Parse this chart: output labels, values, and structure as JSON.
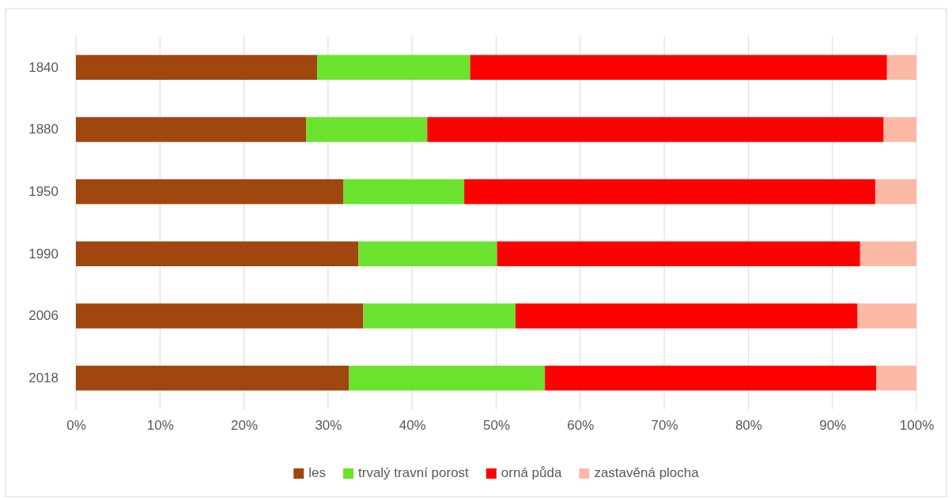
{
  "chart_data": {
    "type": "bar",
    "orientation": "horizontal",
    "stacked": true,
    "categories": [
      "1840",
      "1880",
      "1950",
      "1990",
      "2006",
      "2018"
    ],
    "series": [
      {
        "name": "les",
        "color": "#a0460f",
        "values": [
          28.7,
          27.4,
          31.8,
          33.6,
          34.2,
          32.5
        ]
      },
      {
        "name": "trvalý travní porost",
        "color": "#6be22d",
        "values": [
          18.2,
          14.4,
          14.4,
          16.5,
          18.1,
          23.3
        ]
      },
      {
        "name": "orná půda",
        "color": "#ff0000",
        "values": [
          49.6,
          54.3,
          48.9,
          43.2,
          40.7,
          39.4
        ]
      },
      {
        "name": "zastavěná plocha",
        "color": "#fbb9a6",
        "values": [
          3.5,
          3.9,
          4.9,
          6.7,
          7.0,
          4.8
        ]
      }
    ],
    "xlim": [
      0,
      100
    ],
    "xticks": [
      {
        "value": 0,
        "label": "0%"
      },
      {
        "value": 10,
        "label": "10%"
      },
      {
        "value": 20,
        "label": "20%"
      },
      {
        "value": 30,
        "label": "30%"
      },
      {
        "value": 40,
        "label": "40%"
      },
      {
        "value": 50,
        "label": "50%"
      },
      {
        "value": 60,
        "label": "60%"
      },
      {
        "value": 70,
        "label": "70%"
      },
      {
        "value": 80,
        "label": "80%"
      },
      {
        "value": 90,
        "label": "90%"
      },
      {
        "value": 100,
        "label": "100%"
      }
    ],
    "grid": "x",
    "legend": "bottom"
  }
}
